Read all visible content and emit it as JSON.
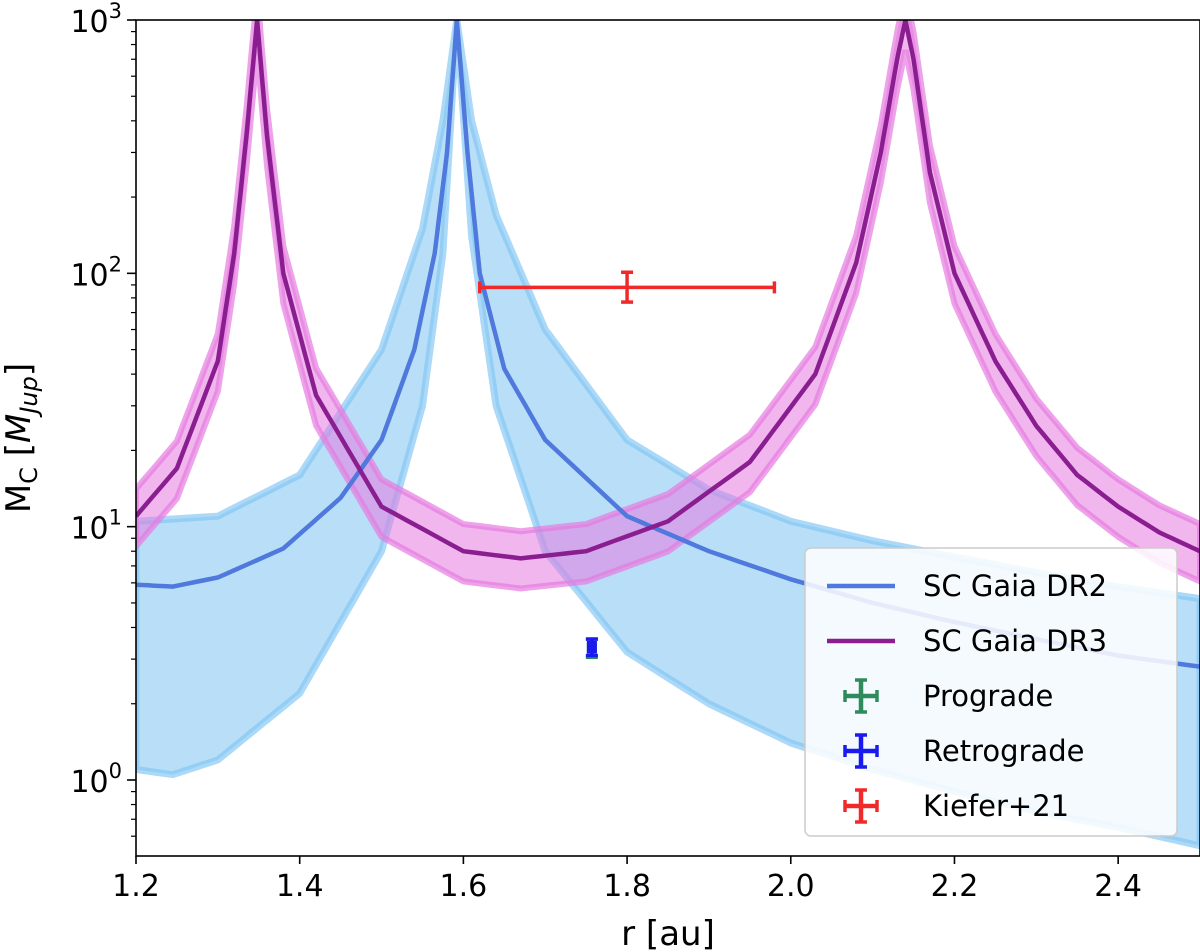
{
  "chart_data": {
    "type": "line",
    "xlabel": "r [au]",
    "ylabel": "M_C [M_Jup]",
    "xlim": [
      1.2,
      2.5
    ],
    "ylim_log10": [
      -0.3,
      3
    ],
    "yscale": "log",
    "x_ticks": [
      "1.2",
      "1.4",
      "1.6",
      "1.8",
      "2.0",
      "2.2",
      "2.4"
    ],
    "y_ticks": [
      {
        "base": "10",
        "exp": "0",
        "value": 1
      },
      {
        "base": "10",
        "exp": "1",
        "value": 10
      },
      {
        "base": "10",
        "exp": "2",
        "value": 100
      },
      {
        "base": "10",
        "exp": "3",
        "value": 1000
      }
    ],
    "series": [
      {
        "name": "SC Gaia DR2",
        "color": "#4f79dc",
        "band_color": "#7fc4f2",
        "peaks": [
          1.592
        ],
        "center": {
          "x": [
            1.2,
            1.245,
            1.3,
            1.38,
            1.45,
            1.5,
            1.54,
            1.565,
            1.58,
            1.592,
            1.605,
            1.62,
            1.65,
            1.7,
            1.8,
            1.9,
            2.0,
            2.1,
            2.2,
            2.3,
            2.4,
            2.5
          ],
          "y": [
            5.9,
            5.8,
            6.3,
            8.2,
            13,
            22,
            50,
            120,
            300,
            1000,
            300,
            100,
            42,
            22,
            11,
            8,
            6.2,
            5,
            4.2,
            3.6,
            3.1,
            2.8
          ]
        },
        "upper": {
          "x": [
            1.2,
            1.3,
            1.4,
            1.5,
            1.55,
            1.575,
            1.592,
            1.61,
            1.64,
            1.7,
            1.8,
            1.9,
            2.0,
            2.1,
            2.2,
            2.3,
            2.4,
            2.5
          ],
          "y": [
            10.5,
            11,
            16,
            50,
            150,
            400,
            1000,
            400,
            170,
            60,
            22,
            14,
            10.5,
            8.8,
            7.6,
            6.6,
            5.8,
            5.2
          ]
        },
        "lower": {
          "x": [
            1.2,
            1.245,
            1.3,
            1.4,
            1.5,
            1.55,
            1.575,
            1.592,
            1.61,
            1.64,
            1.7,
            1.8,
            1.9,
            2.0,
            2.1,
            2.2,
            2.3,
            2.4,
            2.5
          ],
          "y": [
            1.1,
            1.05,
            1.2,
            2.2,
            8,
            30,
            120,
            1000,
            140,
            30,
            8,
            3.2,
            2,
            1.4,
            1.1,
            0.9,
            0.75,
            0.65,
            0.55
          ]
        }
      },
      {
        "name": "SC Gaia DR3",
        "color": "#8a1e90",
        "band_color": "#e67ae0",
        "peaks": [
          1.348,
          2.14
        ],
        "center": {
          "x": [
            1.2,
            1.25,
            1.3,
            1.32,
            1.335,
            1.348,
            1.36,
            1.38,
            1.42,
            1.5,
            1.6,
            1.67,
            1.75,
            1.85,
            1.95,
            2.03,
            2.08,
            2.11,
            2.13,
            2.14,
            2.15,
            2.17,
            2.2,
            2.25,
            2.3,
            2.35,
            2.4,
            2.45,
            2.5
          ],
          "y": [
            11,
            17,
            45,
            120,
            350,
            1000,
            350,
            100,
            33,
            12,
            8,
            7.5,
            8,
            10.5,
            18,
            40,
            110,
            300,
            700,
            1000,
            700,
            250,
            100,
            45,
            25,
            16,
            12,
            9.5,
            8
          ]
        }
      }
    ],
    "error_points": [
      {
        "name": "Prograde",
        "color": "#2f8a5c",
        "x": 1.757,
        "xerr": 0.004,
        "y": 3.3,
        "ylow": 3.05,
        "yhigh": 3.6
      },
      {
        "name": "Retrograde",
        "color": "#1a1aee",
        "x": 1.757,
        "xerr": 0.004,
        "y": 3.35,
        "ylow": 3.1,
        "yhigh": 3.6
      },
      {
        "name": "Kiefer+21",
        "color": "#f02a2a",
        "x": 1.8,
        "xerr_low": 1.62,
        "xerr_high": 1.98,
        "y": 88,
        "ylow": 77,
        "yhigh": 101
      }
    ],
    "legend": {
      "placement": "lower-right",
      "entries": [
        {
          "label": "SC Gaia DR2",
          "kind": "line",
          "color": "#4f79dc"
        },
        {
          "label": "SC Gaia DR3",
          "kind": "line",
          "color": "#8a1e90"
        },
        {
          "label": "Prograde",
          "kind": "errorbar",
          "color": "#2f8a5c"
        },
        {
          "label": "Retrograde",
          "kind": "errorbar",
          "color": "#1a1aee"
        },
        {
          "label": "Kiefer+21",
          "kind": "errorbar",
          "color": "#f02a2a"
        }
      ]
    }
  }
}
